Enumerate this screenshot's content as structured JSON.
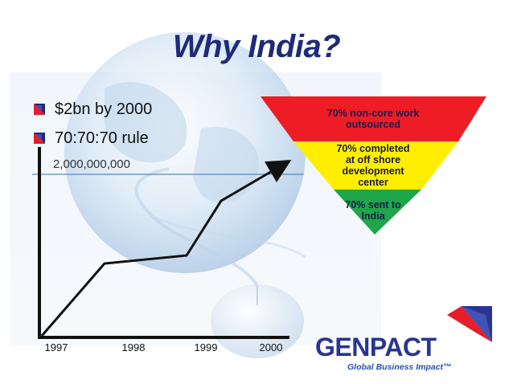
{
  "title": "Why India?",
  "bullets": [
    {
      "text": "$2bn by 2000",
      "icon": "bullet-arrow-icon"
    },
    {
      "text": "70:70:70 rule",
      "icon": "bullet-arrow-icon"
    }
  ],
  "growth_chart": {
    "y_label": "2,000,000,000",
    "x_ticks": [
      "1997",
      "1998",
      "1999",
      "2000"
    ]
  },
  "pyramid": {
    "tiers": [
      {
        "text_lines": [
          "70% non-core work",
          "outsourced"
        ],
        "color": "#ee1c24"
      },
      {
        "text_lines": [
          "70% completed",
          "at off shore",
          "development",
          "center"
        ],
        "color": "#ffee00"
      },
      {
        "text_lines": [
          "70% sent to",
          "India"
        ],
        "color": "#1fa64a"
      }
    ]
  },
  "logo": {
    "name": "GENPACT",
    "tagline": "Global Business Impact™",
    "colors": {
      "text": "#2a3591",
      "accent_red": "#e41e2b",
      "accent_blue": "#2a3591"
    }
  },
  "background_image": "globe-and-computer-mouse"
}
